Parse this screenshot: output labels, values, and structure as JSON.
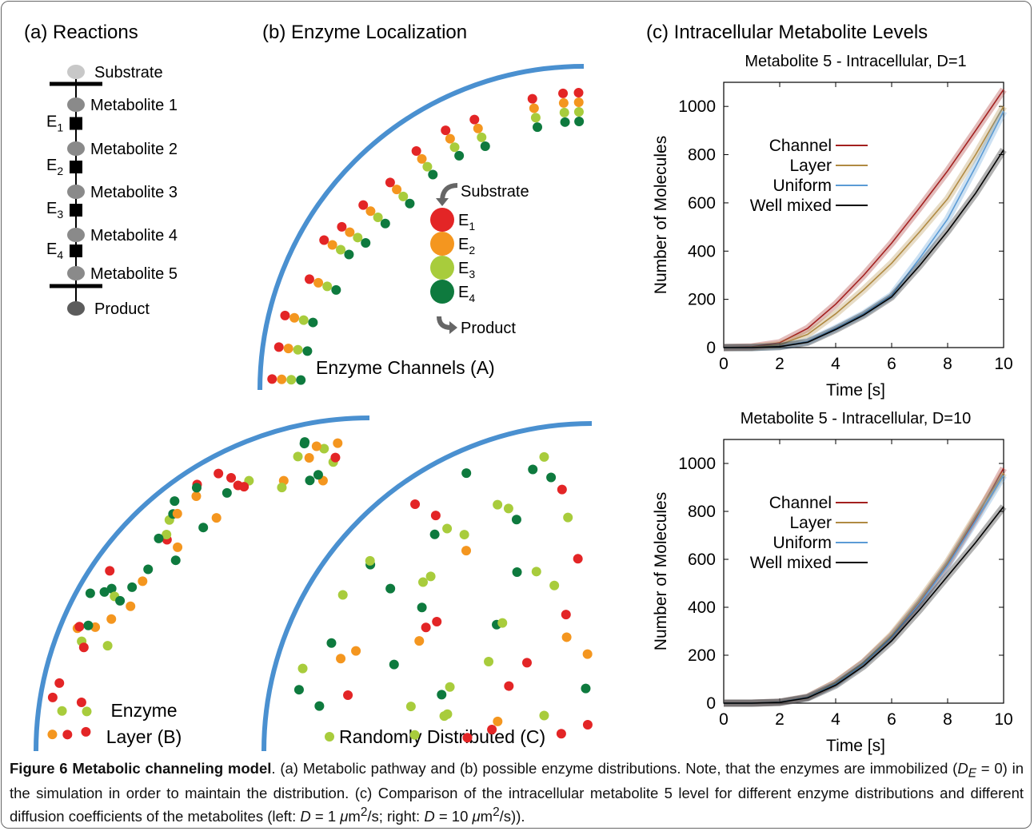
{
  "figure": {
    "panel_a": {
      "title": "(a) Reactions",
      "nodes": [
        "Substrate",
        "Metabolite 1",
        "Metabolite 2",
        "Metabolite 3",
        "Metabolite 4",
        "Metabolite 5",
        "Product"
      ],
      "enzymes": [
        {
          "symbol": "E",
          "subscript": "1"
        },
        {
          "symbol": "E",
          "subscript": "2"
        },
        {
          "symbol": "E",
          "subscript": "3"
        },
        {
          "symbol": "E",
          "subscript": "4"
        }
      ]
    },
    "panel_b": {
      "title": "(b) Enzyme Localization",
      "legend_substrate": "Substrate",
      "legend_product": "Product",
      "legend_enzymes": [
        {
          "symbol": "E",
          "subscript": "1"
        },
        {
          "symbol": "E",
          "subscript": "2"
        },
        {
          "symbol": "E",
          "subscript": "3"
        },
        {
          "symbol": "E",
          "subscript": "4"
        }
      ],
      "channels_label": "Enzyme Channels (A)",
      "layer_label": [
        "Enzyme",
        "Layer (B)"
      ],
      "random_label": "Randomly Distributed (C)"
    },
    "panel_c": {
      "title": "(c) Intracellular Metabolite Levels"
    },
    "caption": [
      "Figure 6 Metabolic channeling model",
      ". (a) Metabolic pathway and (b) possible enzyme distributions. Note, that the enzymes are immobilized (",
      "D",
      "E",
      " = 0) in the simulation in order to maintain the distribution. (c) Comparison of the intracellular metabolite 5 level for different enzyme distributions and different diffusion coefficients of the metabolites (left: ",
      "D",
      " = 1 ",
      "μ",
      "m",
      "2",
      "/s; right: ",
      "D",
      " = 10 ",
      "μ",
      "m",
      "2",
      "/s))."
    ]
  },
  "chart_data": [
    {
      "type": "line",
      "title": "Metabolite 5 - Intracellular, D=1",
      "x_label": "Time [s]",
      "y_label": "Number of Molecules",
      "x": [
        0,
        1,
        2,
        3,
        4,
        5,
        6,
        7,
        8,
        9,
        10
      ],
      "xlim": [
        0,
        10
      ],
      "ylim": [
        0,
        1100
      ],
      "xticks": [
        0,
        2,
        4,
        6,
        8,
        10
      ],
      "yticks": [
        0,
        200,
        400,
        600,
        800,
        1000
      ],
      "series": [
        {
          "name": "Channel",
          "color": "#a3201f",
          "values": [
            0,
            3,
            20,
            80,
            180,
            300,
            433,
            580,
            733,
            900,
            1070
          ]
        },
        {
          "name": "Layer",
          "color": "#b08a42",
          "values": [
            0,
            1,
            12,
            55,
            140,
            240,
            350,
            480,
            617,
            800,
            1000
          ]
        },
        {
          "name": "Uniform",
          "color": "#5b9bd5",
          "values": [
            0,
            0,
            5,
            25,
            80,
            140,
            217,
            370,
            533,
            750,
            980
          ]
        },
        {
          "name": "Well mixed",
          "color": "#000000",
          "values": [
            0,
            0,
            4,
            22,
            75,
            135,
            210,
            340,
            483,
            640,
            820
          ]
        }
      ]
    },
    {
      "type": "line",
      "title": "Metabolite 5 - Intracellular, D=10",
      "x_label": "Time [s]",
      "y_label": "Number of Molecules",
      "x": [
        0,
        1,
        2,
        3,
        4,
        5,
        6,
        7,
        8,
        9,
        10
      ],
      "xlim": [
        0,
        10
      ],
      "ylim": [
        0,
        1100
      ],
      "xticks": [
        0,
        2,
        4,
        6,
        8,
        10
      ],
      "yticks": [
        0,
        200,
        400,
        600,
        800,
        1000
      ],
      "series": [
        {
          "name": "Channel",
          "color": "#a3201f",
          "values": [
            0,
            0,
            4,
            25,
            85,
            170,
            280,
            420,
            580,
            770,
            980
          ]
        },
        {
          "name": "Layer",
          "color": "#b08a42",
          "values": [
            0,
            0,
            4,
            25,
            85,
            170,
            285,
            430,
            590,
            780,
            960
          ]
        },
        {
          "name": "Uniform",
          "color": "#5b9bd5",
          "values": [
            0,
            0,
            4,
            24,
            80,
            165,
            275,
            415,
            575,
            760,
            950
          ]
        },
        {
          "name": "Well mixed",
          "color": "#000000",
          "values": [
            0,
            0,
            3,
            22,
            75,
            155,
            260,
            390,
            530,
            670,
            820
          ]
        }
      ]
    }
  ]
}
